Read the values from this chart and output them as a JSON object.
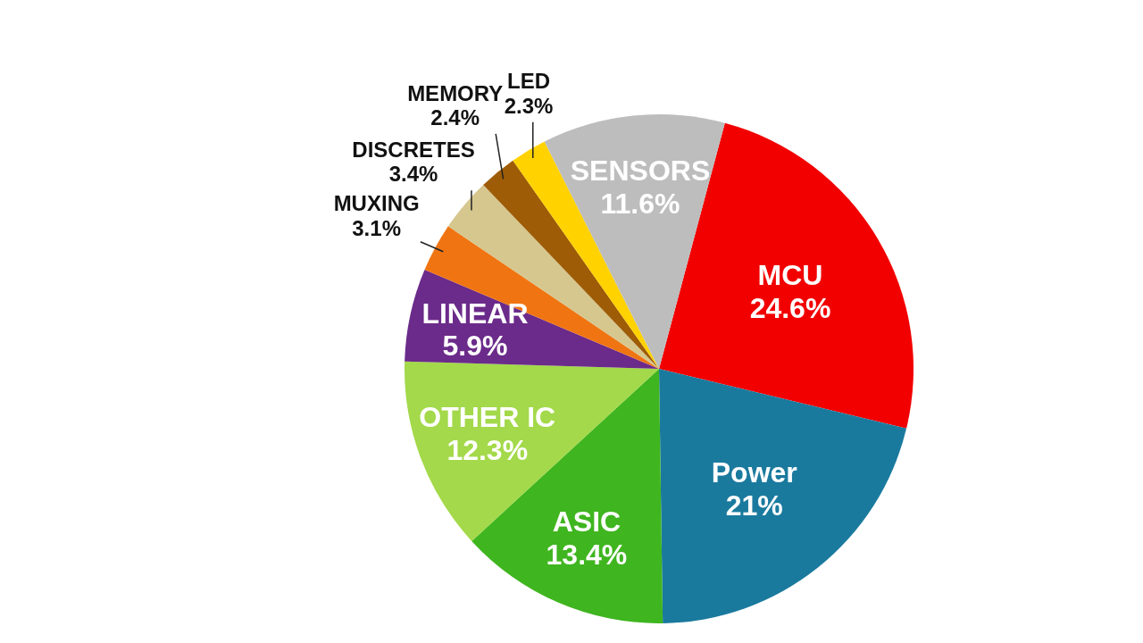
{
  "chart_data": {
    "type": "pie",
    "categories": [
      "MCU",
      "Power",
      "ASIC",
      "OTHER IC",
      "LINEAR",
      "MUXING",
      "DISCRETES",
      "MEMORY",
      "LED",
      "SENSORS"
    ],
    "values": [
      24.6,
      21,
      13.4,
      12.3,
      5.9,
      3.1,
      3.4,
      2.4,
      2.3,
      11.6
    ],
    "value_labels": [
      "24.6%",
      "21%",
      "13.4%",
      "12.3%",
      "5.9%",
      "3.1%",
      "3.4%",
      "2.4%",
      "2.3%",
      "11.6%"
    ],
    "colors": [
      "#f20000",
      "#1a7a9e",
      "#3fb51f",
      "#a3d94a",
      "#6b2b8a",
      "#f07512",
      "#d6c78f",
      "#9e5c06",
      "#ffd200",
      "#bdbdbd"
    ]
  }
}
